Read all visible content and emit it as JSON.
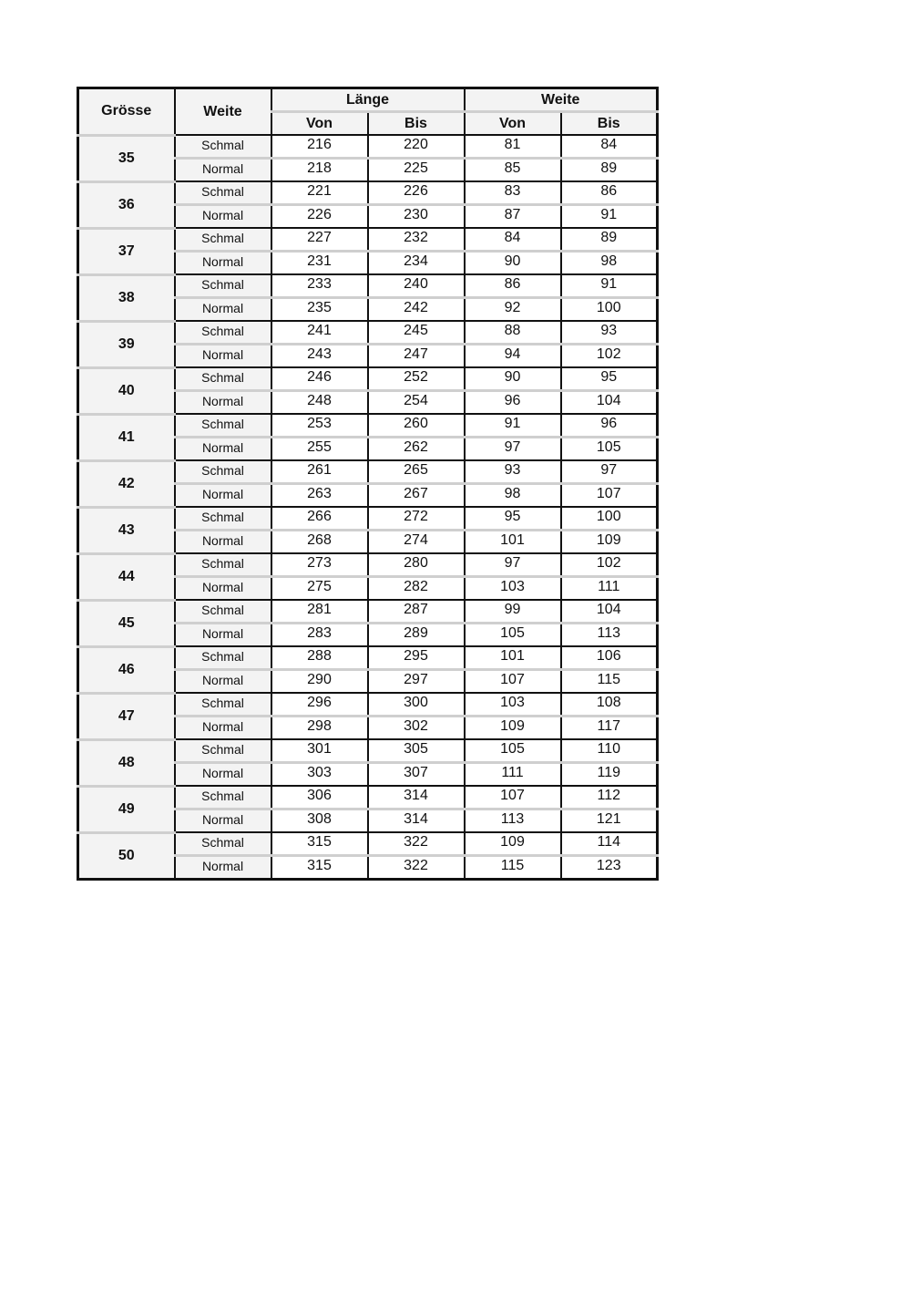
{
  "headers": {
    "groesse": "Grösse",
    "weite": "Weite",
    "laenge": "Länge",
    "weite_group": "Weite",
    "von": "Von",
    "bis": "Bis"
  },
  "rows": [
    {
      "size": "35",
      "schmal": [
        "216",
        "220",
        "81",
        "84"
      ],
      "normal": [
        "218",
        "225",
        "85",
        "89"
      ]
    },
    {
      "size": "36",
      "schmal": [
        "221",
        "226",
        "83",
        "86"
      ],
      "normal": [
        "226",
        "230",
        "87",
        "91"
      ]
    },
    {
      "size": "37",
      "schmal": [
        "227",
        "232",
        "84",
        "89"
      ],
      "normal": [
        "231",
        "234",
        "90",
        "98"
      ]
    },
    {
      "size": "38",
      "schmal": [
        "233",
        "240",
        "86",
        "91"
      ],
      "normal": [
        "235",
        "242",
        "92",
        "100"
      ]
    },
    {
      "size": "39",
      "schmal": [
        "241",
        "245",
        "88",
        "93"
      ],
      "normal": [
        "243",
        "247",
        "94",
        "102"
      ]
    },
    {
      "size": "40",
      "schmal": [
        "246",
        "252",
        "90",
        "95"
      ],
      "normal": [
        "248",
        "254",
        "96",
        "104"
      ]
    },
    {
      "size": "41",
      "schmal": [
        "253",
        "260",
        "91",
        "96"
      ],
      "normal": [
        "255",
        "262",
        "97",
        "105"
      ]
    },
    {
      "size": "42",
      "schmal": [
        "261",
        "265",
        "93",
        "97"
      ],
      "normal": [
        "263",
        "267",
        "98",
        "107"
      ]
    },
    {
      "size": "43",
      "schmal": [
        "266",
        "272",
        "95",
        "100"
      ],
      "normal": [
        "268",
        "274",
        "101",
        "109"
      ]
    },
    {
      "size": "44",
      "schmal": [
        "273",
        "280",
        "97",
        "102"
      ],
      "normal": [
        "275",
        "282",
        "103",
        "111"
      ]
    },
    {
      "size": "45",
      "schmal": [
        "281",
        "287",
        "99",
        "104"
      ],
      "normal": [
        "283",
        "289",
        "105",
        "113"
      ]
    },
    {
      "size": "46",
      "schmal": [
        "288",
        "295",
        "101",
        "106"
      ],
      "normal": [
        "290",
        "297",
        "107",
        "115"
      ]
    },
    {
      "size": "47",
      "schmal": [
        "296",
        "300",
        "103",
        "108"
      ],
      "normal": [
        "298",
        "302",
        "109",
        "117"
      ]
    },
    {
      "size": "48",
      "schmal": [
        "301",
        "305",
        "105",
        "110"
      ],
      "normal": [
        "303",
        "307",
        "111",
        "119"
      ]
    },
    {
      "size": "49",
      "schmal": [
        "306",
        "314",
        "107",
        "112"
      ],
      "normal": [
        "308",
        "314",
        "113",
        "121"
      ]
    },
    {
      "size": "50",
      "schmal": [
        "315",
        "322",
        "109",
        "114"
      ],
      "normal": [
        "315",
        "322",
        "115",
        "123"
      ]
    }
  ],
  "labels": {
    "schmal": "Schmal",
    "normal": "Normal"
  }
}
